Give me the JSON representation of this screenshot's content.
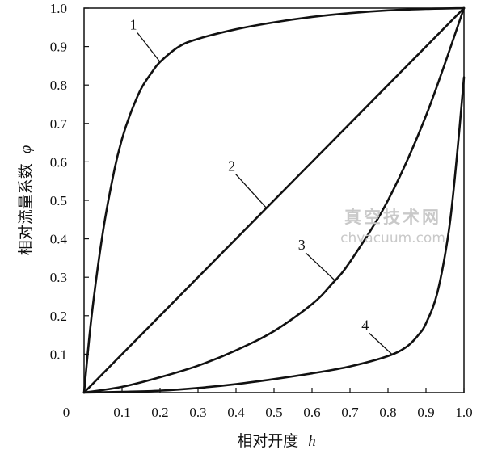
{
  "chart_data": {
    "type": "line",
    "xlabel": "相对开度",
    "xlabel_var": "h",
    "ylabel": "相对流量系数",
    "ylabel_var": "φ",
    "xlim": [
      0,
      1.0
    ],
    "ylim": [
      0,
      1.0
    ],
    "x_origin_label": "0",
    "x_ticks": [
      "0.1",
      "0.2",
      "0.3",
      "0.4",
      "0.5",
      "0.6",
      "0.7",
      "0.8",
      "0.9",
      "1.0"
    ],
    "y_ticks": [
      "0.1",
      "0.2",
      "0.3",
      "0.4",
      "0.5",
      "0.6",
      "0.7",
      "0.8",
      "0.9",
      "1.0"
    ],
    "grid": false,
    "series": [
      {
        "name": "1",
        "x": [
          0,
          0.02,
          0.05,
          0.08,
          0.1,
          0.12,
          0.15,
          0.18,
          0.2,
          0.25,
          0.3,
          0.4,
          0.5,
          0.6,
          0.7,
          0.8,
          0.9,
          1.0
        ],
        "y": [
          0,
          0.2,
          0.42,
          0.58,
          0.66,
          0.72,
          0.79,
          0.835,
          0.86,
          0.9,
          0.92,
          0.945,
          0.963,
          0.977,
          0.987,
          0.994,
          0.998,
          1.0
        ]
      },
      {
        "name": "2",
        "x": [
          0,
          1.0
        ],
        "y": [
          0,
          1.0
        ]
      },
      {
        "name": "3",
        "x": [
          0,
          0.1,
          0.2,
          0.3,
          0.4,
          0.5,
          0.6,
          0.65,
          0.7,
          0.8,
          0.9,
          1.0
        ],
        "y": [
          0,
          0.015,
          0.04,
          0.07,
          0.11,
          0.16,
          0.23,
          0.28,
          0.34,
          0.5,
          0.72,
          1.0
        ]
      },
      {
        "name": "4",
        "x": [
          0,
          0.1,
          0.2,
          0.3,
          0.4,
          0.5,
          0.6,
          0.7,
          0.8,
          0.85,
          0.88,
          0.9,
          0.93,
          0.96,
          0.98,
          1.0
        ],
        "y": [
          0,
          0.002,
          0.005,
          0.012,
          0.022,
          0.035,
          0.05,
          0.068,
          0.095,
          0.12,
          0.15,
          0.18,
          0.26,
          0.42,
          0.6,
          0.82
        ]
      }
    ]
  },
  "watermark": {
    "line1": "真空技术网",
    "line2": "chvacuum.com"
  }
}
